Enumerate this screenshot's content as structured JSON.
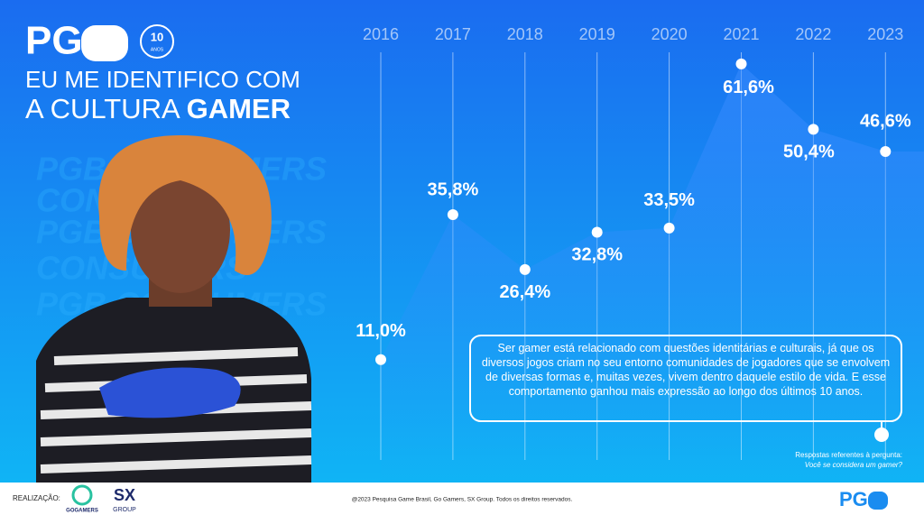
{
  "header": {
    "logo": "PG",
    "anniversary": "10",
    "anniversary_sub": "ANOS",
    "title_line1": "EU ME IDENTIFICO COM",
    "title_line2_prefix": "A CULTURA",
    "title_line2_bold": "GAMER"
  },
  "chart_data": {
    "type": "line",
    "categories": [
      "2016",
      "2017",
      "2018",
      "2019",
      "2020",
      "2021",
      "2022",
      "2023"
    ],
    "values": [
      11.0,
      35.8,
      26.4,
      32.8,
      33.5,
      61.6,
      50.4,
      46.6
    ],
    "value_labels": [
      "11,0%",
      "35,8%",
      "26,4%",
      "32,8%",
      "33,5%",
      "61,6%",
      "50,4%",
      "46,6%"
    ],
    "color": "#ffffff"
  },
  "note": "Ser gamer está relacionado com questões identitárias e culturais, já que os diversos jogos criam no seu entorno comunidades de jogadores que se envolvem de diversas formas e, muitas vezes, vivem dentro daquele estilo de vida. E esse comportamento ganhou mais expressão ao longo dos últimos 10 anos.",
  "source": {
    "line1": "Respostas referentes à pergunta:",
    "line2": "Você se considera um gamer?"
  },
  "footer": {
    "label": "REALIZAÇÃO:",
    "gogamers": "GOGAMERS",
    "sx": "SX",
    "sx_sub": "GROUP",
    "copyright": "@2023 Pesquisa Game Brasil, Go Gamers, SX Group. Todos os direitos reservados.",
    "logo": "PG"
  }
}
